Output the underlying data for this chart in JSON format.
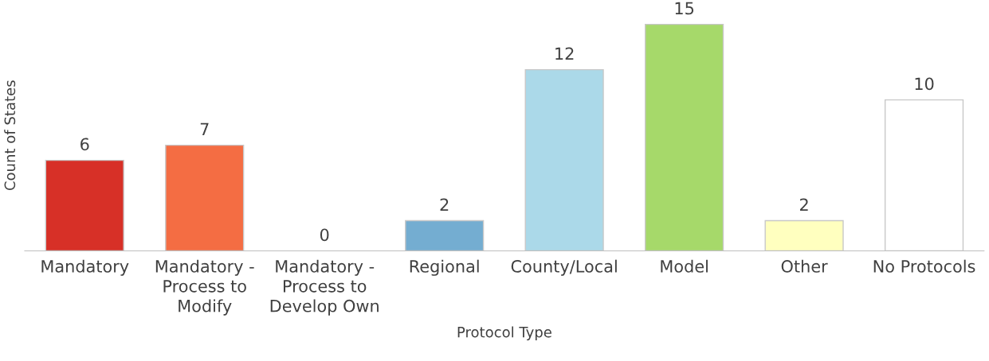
{
  "chart_data": {
    "type": "bar",
    "xlabel": "Protocol Type",
    "ylabel": "Count of States",
    "categories": [
      "Mandatory",
      "Mandatory -\nProcess to\nModify",
      "Mandatory -\nProcess to\nDevelop Own",
      "Regional",
      "County/Local",
      "Model",
      "Other",
      "No Protocols"
    ],
    "values": [
      6,
      7,
      0,
      2,
      12,
      15,
      2,
      10
    ],
    "colors": [
      "#d73027",
      "#f46d43",
      "#fdae61",
      "#74add1",
      "#abd9e9",
      "#a6d96a",
      "#ffffbf",
      "#ffffff"
    ],
    "data_labels": true,
    "grid": false,
    "legend": false
  }
}
